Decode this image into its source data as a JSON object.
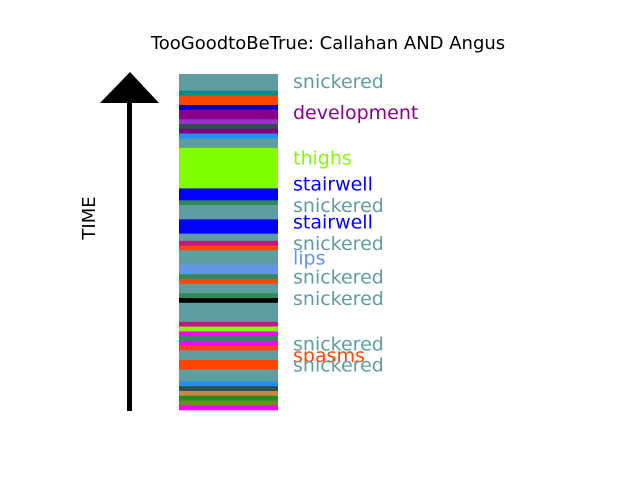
{
  "chart_data": {
    "type": "bar",
    "title": "TooGoodtoBeTrue: Callahan AND Angus",
    "ylabel": "TIME",
    "xlabel": "",
    "stack_order": "top-to-bottom",
    "segments": [
      {
        "value": 3.5,
        "color": "#5f9ea0"
      },
      {
        "value": 1,
        "color": "#008b8b"
      },
      {
        "value": 2,
        "color": "#ff4500"
      },
      {
        "value": 1,
        "color": "#0000cd"
      },
      {
        "value": 2,
        "color": "#8b008b"
      },
      {
        "value": 1,
        "color": "#9932cc"
      },
      {
        "value": 1,
        "color": "#2f4f4f"
      },
      {
        "value": 1,
        "color": "#800080"
      },
      {
        "value": 1,
        "color": "#1e90ff"
      },
      {
        "value": 2,
        "color": "#5f9ea0"
      },
      {
        "value": 8.5,
        "color": "#7fff00"
      },
      {
        "value": 2.5,
        "color": "#0000ff"
      },
      {
        "value": 1,
        "color": "#2e8b57"
      },
      {
        "value": 3,
        "color": "#5f9ea0"
      },
      {
        "value": 3,
        "color": "#0000ff"
      },
      {
        "value": 1.5,
        "color": "#5f9ea0"
      },
      {
        "value": 1,
        "color": "#c71585"
      },
      {
        "value": 1,
        "color": "#ff4500"
      },
      {
        "value": 1,
        "color": "#5f9ea0"
      },
      {
        "value": 2,
        "color": "#5f9ea0"
      },
      {
        "value": 2,
        "color": "#6495ed"
      },
      {
        "value": 1,
        "color": "#2e8b57"
      },
      {
        "value": 1,
        "color": "#ff4500"
      },
      {
        "value": 2,
        "color": "#5f9ea0"
      },
      {
        "value": 1,
        "color": "#2e8b57"
      },
      {
        "value": 1,
        "color": "#000000"
      },
      {
        "value": 4,
        "color": "#5f9ea0"
      },
      {
        "value": 1,
        "color": "#c71585"
      },
      {
        "value": 1,
        "color": "#7fff00"
      },
      {
        "value": 1,
        "color": "#ff00ff"
      },
      {
        "value": 1,
        "color": "#2e8b57"
      },
      {
        "value": 1,
        "color": "#ff00ff"
      },
      {
        "value": 1,
        "color": "#ff4500"
      },
      {
        "value": 2,
        "color": "#5f9ea0"
      },
      {
        "value": 2,
        "color": "#ff4500"
      },
      {
        "value": 2.5,
        "color": "#5f9ea0"
      },
      {
        "value": 1,
        "color": "#1e90ff"
      },
      {
        "value": 1,
        "color": "#2f4f4f"
      },
      {
        "value": 1,
        "color": "#cd853f"
      },
      {
        "value": 1,
        "color": "#228b22"
      },
      {
        "value": 1,
        "color": "#6b8e23"
      },
      {
        "value": 1,
        "color": "#ff00ff"
      }
    ],
    "labels": [
      {
        "text": "snickered",
        "at": 1.5,
        "color": "#5f9ea0"
      },
      {
        "text": "development",
        "at": 8.0,
        "color": "#8b008b"
      },
      {
        "text": "thighs",
        "at": 17.5,
        "color": "#7fff00"
      },
      {
        "text": "stairwell",
        "at": 23.0,
        "color": "#0000ff"
      },
      {
        "text": "snickered",
        "at": 27.5,
        "color": "#5f9ea0"
      },
      {
        "text": "stairwell",
        "at": 31.0,
        "color": "#0000ff"
      },
      {
        "text": "snickered",
        "at": 35.5,
        "color": "#5f9ea0"
      },
      {
        "text": "lips",
        "at": 38.5,
        "color": "#6495ed"
      },
      {
        "text": "snickered",
        "at": 42.5,
        "color": "#5f9ea0"
      },
      {
        "text": "snickered",
        "at": 47.0,
        "color": "#5f9ea0"
      },
      {
        "text": "snickered",
        "at": 56.5,
        "color": "#5f9ea0"
      },
      {
        "text": "spasms",
        "at": 59.0,
        "color": "#ff4500"
      },
      {
        "text": "snickered",
        "at": 61.0,
        "color": "#5f9ea0"
      }
    ]
  }
}
